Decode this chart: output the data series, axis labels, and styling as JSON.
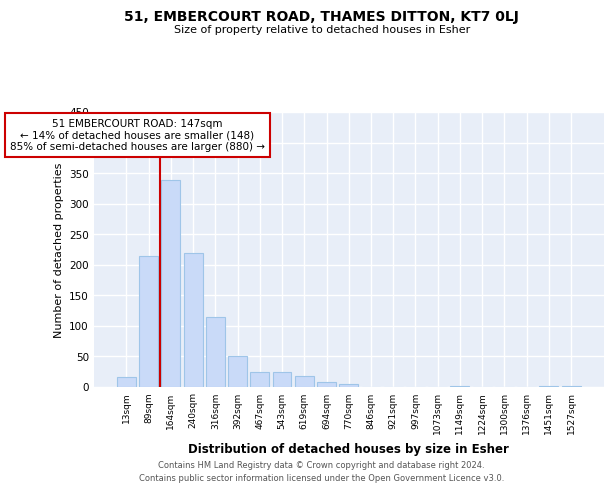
{
  "title1": "51, EMBERCOURT ROAD, THAMES DITTON, KT7 0LJ",
  "title2": "Size of property relative to detached houses in Esher",
  "xlabel": "Distribution of detached houses by size in Esher",
  "ylabel": "Number of detached properties",
  "bar_labels": [
    "13sqm",
    "89sqm",
    "164sqm",
    "240sqm",
    "316sqm",
    "392sqm",
    "467sqm",
    "543sqm",
    "619sqm",
    "694sqm",
    "770sqm",
    "846sqm",
    "921sqm",
    "997sqm",
    "1073sqm",
    "1149sqm",
    "1224sqm",
    "1300sqm",
    "1376sqm",
    "1451sqm",
    "1527sqm"
  ],
  "bar_values": [
    17,
    215,
    338,
    220,
    114,
    50,
    25,
    25,
    18,
    8,
    5,
    0,
    0,
    0,
    0,
    2,
    0,
    0,
    0,
    2,
    1
  ],
  "bar_color": "#c9daf8",
  "bar_edge_color": "#9fc5e8",
  "property_line_x": 2,
  "property_line_color": "#cc0000",
  "annotation_title": "51 EMBERCOURT ROAD: 147sqm",
  "annotation_line1": "← 14% of detached houses are smaller (148)",
  "annotation_line2": "85% of semi-detached houses are larger (880) →",
  "annotation_box_color": "#cc0000",
  "ylim": [
    0,
    450
  ],
  "yticks": [
    0,
    50,
    100,
    150,
    200,
    250,
    300,
    350,
    400,
    450
  ],
  "footer1": "Contains HM Land Registry data © Crown copyright and database right 2024.",
  "footer2": "Contains public sector information licensed under the Open Government Licence v3.0.",
  "bg_color": "#ffffff",
  "plot_bg_color": "#e8eef8",
  "grid_color": "#ffffff"
}
